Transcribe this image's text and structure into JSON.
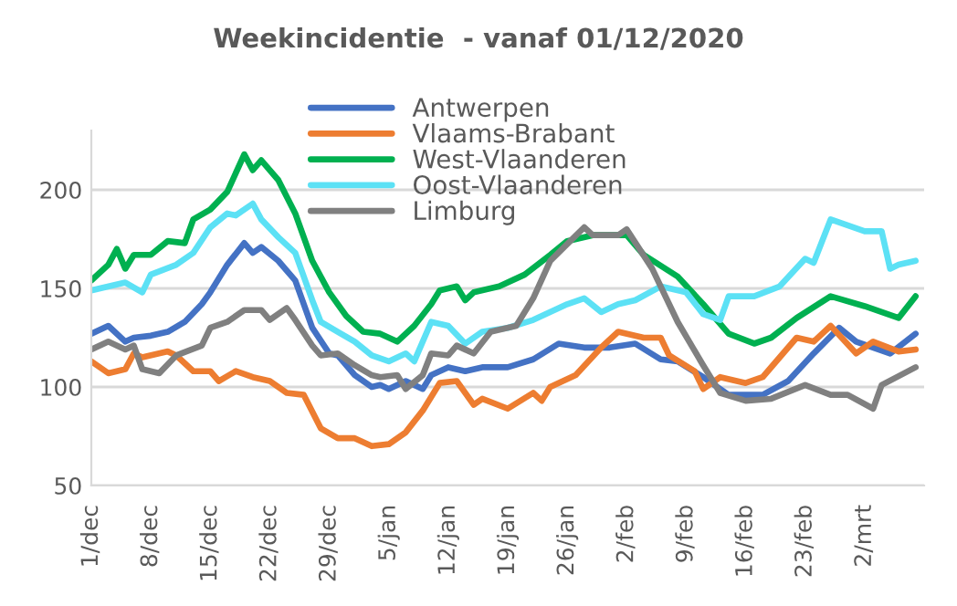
{
  "chart_data": {
    "type": "line",
    "title": "Weekincidentie  - vanaf 01/12/2020",
    "legend": "top",
    "grid": "y",
    "line_style": "solid",
    "marker": "none",
    "xlim": [
      "2020-12-01",
      "2021-03-09"
    ],
    "xticks": [
      {
        "value": "2020-12-01",
        "label": "1/dec"
      },
      {
        "value": "2020-12-08",
        "label": "8/dec"
      },
      {
        "value": "2020-12-15",
        "label": "15/dec"
      },
      {
        "value": "2020-12-22",
        "label": "22/dec"
      },
      {
        "value": "2020-12-29",
        "label": "29/dec"
      },
      {
        "value": "2021-01-05",
        "label": "5/jan"
      },
      {
        "value": "2021-01-12",
        "label": "12/jan"
      },
      {
        "value": "2021-01-19",
        "label": "19/jan"
      },
      {
        "value": "2021-01-26",
        "label": "26/jan"
      },
      {
        "value": "2021-02-02",
        "label": "2/feb"
      },
      {
        "value": "2021-02-09",
        "label": "9/feb"
      },
      {
        "value": "2021-02-16",
        "label": "16/feb"
      },
      {
        "value": "2021-02-23",
        "label": "23/feb"
      },
      {
        "value": "2021-03-02",
        "label": "2/mrt"
      }
    ],
    "ylim": [
      50,
      230
    ],
    "yticks": [
      50,
      100,
      150,
      200
    ],
    "series": [
      {
        "name": "Antwerpen",
        "color": "#4472c4",
        "x": [
          "2020-12-01",
          "2020-12-03",
          "2020-12-05",
          "2020-12-06",
          "2020-12-08",
          "2020-12-10",
          "2020-12-12",
          "2020-12-14",
          "2020-12-15",
          "2020-12-17",
          "2020-12-19",
          "2020-12-20",
          "2020-12-21",
          "2020-12-23",
          "2020-12-25",
          "2020-12-27",
          "2020-12-29",
          "2020-12-30",
          "2021-01-01",
          "2021-01-03",
          "2021-01-04",
          "2021-01-05",
          "2021-01-07",
          "2021-01-09",
          "2021-01-10",
          "2021-01-12",
          "2021-01-14",
          "2021-01-16",
          "2021-01-19",
          "2021-01-22",
          "2021-01-25",
          "2021-01-28",
          "2021-01-31",
          "2021-02-03",
          "2021-02-06",
          "2021-02-08",
          "2021-02-11",
          "2021-02-14",
          "2021-02-18",
          "2021-02-21",
          "2021-02-24",
          "2021-02-27",
          "2021-03-01",
          "2021-03-05",
          "2021-03-08"
        ],
        "values": [
          127,
          131,
          123,
          125,
          126,
          128,
          133,
          142,
          148,
          162,
          173,
          168,
          171,
          164,
          154,
          130,
          117,
          116,
          106,
          100,
          101,
          99,
          103,
          99,
          106,
          110,
          108,
          110,
          110,
          114,
          122,
          120,
          120,
          122,
          114,
          113,
          105,
          96,
          96,
          103,
          117,
          130,
          123,
          117,
          127
        ]
      },
      {
        "name": "Vlaams-Brabant",
        "color": "#ed7d31",
        "x": [
          "2020-12-01",
          "2020-12-03",
          "2020-12-05",
          "2020-12-06",
          "2020-12-07",
          "2020-12-10",
          "2020-12-11",
          "2020-12-13",
          "2020-12-15",
          "2020-12-16",
          "2020-12-18",
          "2020-12-20",
          "2020-12-22",
          "2020-12-24",
          "2020-12-26",
          "2020-12-28",
          "2020-12-30",
          "2021-01-01",
          "2021-01-03",
          "2021-01-05",
          "2021-01-07",
          "2021-01-09",
          "2021-01-11",
          "2021-01-13",
          "2021-01-15",
          "2021-01-16",
          "2021-01-19",
          "2021-01-22",
          "2021-01-23",
          "2021-01-24",
          "2021-01-27",
          "2021-01-30",
          "2021-02-01",
          "2021-02-04",
          "2021-02-06",
          "2021-02-07",
          "2021-02-10",
          "2021-02-11",
          "2021-02-13",
          "2021-02-16",
          "2021-02-18",
          "2021-02-21",
          "2021-02-22",
          "2021-02-24",
          "2021-02-26",
          "2021-03-01",
          "2021-03-03",
          "2021-03-06",
          "2021-03-08"
        ],
        "values": [
          113,
          107,
          109,
          117,
          115,
          118,
          116,
          108,
          108,
          103,
          108,
          105,
          103,
          97,
          96,
          79,
          74,
          74,
          70,
          71,
          77,
          88,
          102,
          103,
          91,
          94,
          89,
          97,
          93,
          100,
          106,
          120,
          128,
          125,
          125,
          116,
          108,
          99,
          105,
          102,
          105,
          120,
          125,
          123,
          131,
          117,
          123,
          118,
          119
        ]
      },
      {
        "name": "West-Vlaanderen",
        "color": "#00b050",
        "x": [
          "2020-12-01",
          "2020-12-03",
          "2020-12-04",
          "2020-12-05",
          "2020-12-06",
          "2020-12-08",
          "2020-12-10",
          "2020-12-12",
          "2020-12-13",
          "2020-12-15",
          "2020-12-17",
          "2020-12-19",
          "2020-12-20",
          "2020-12-21",
          "2020-12-23",
          "2020-12-25",
          "2020-12-27",
          "2020-12-29",
          "2020-12-31",
          "2021-01-02",
          "2021-01-04",
          "2021-01-06",
          "2021-01-08",
          "2021-01-10",
          "2021-01-11",
          "2021-01-13",
          "2021-01-14",
          "2021-01-15",
          "2021-01-18",
          "2021-01-21",
          "2021-01-24",
          "2021-01-26",
          "2021-01-29",
          "2021-02-02",
          "2021-02-04",
          "2021-02-08",
          "2021-02-11",
          "2021-02-14",
          "2021-02-17",
          "2021-02-19",
          "2021-02-22",
          "2021-02-26",
          "2021-03-02",
          "2021-03-06",
          "2021-03-08"
        ],
        "values": [
          154,
          162,
          170,
          160,
          167,
          167,
          174,
          173,
          185,
          190,
          199,
          218,
          210,
          215,
          205,
          188,
          164,
          148,
          136,
          128,
          127,
          123,
          131,
          142,
          149,
          151,
          144,
          148,
          151,
          157,
          167,
          174,
          177,
          177,
          167,
          156,
          142,
          127,
          122,
          125,
          135,
          146,
          141,
          135,
          146
        ]
      },
      {
        "name": "Oost-Vlaanderen",
        "color": "#5ce1f5",
        "x": [
          "2020-12-01",
          "2020-12-05",
          "2020-12-07",
          "2020-12-08",
          "2020-12-11",
          "2020-12-13",
          "2020-12-15",
          "2020-12-17",
          "2020-12-18",
          "2020-12-20",
          "2020-12-21",
          "2020-12-23",
          "2020-12-25",
          "2020-12-27",
          "2020-12-28",
          "2020-12-30",
          "2021-01-01",
          "2021-01-03",
          "2021-01-05",
          "2021-01-07",
          "2021-01-08",
          "2021-01-10",
          "2021-01-12",
          "2021-01-14",
          "2021-01-16",
          "2021-01-19",
          "2021-01-22",
          "2021-01-26",
          "2021-01-28",
          "2021-01-30",
          "2021-02-01",
          "2021-02-03",
          "2021-02-06",
          "2021-02-09",
          "2021-02-11",
          "2021-02-13",
          "2021-02-14",
          "2021-02-17",
          "2021-02-20",
          "2021-02-23",
          "2021-02-24",
          "2021-02-26",
          "2021-02-28",
          "2021-03-02",
          "2021-03-04",
          "2021-03-05",
          "2021-03-06",
          "2021-03-08"
        ],
        "values": [
          149,
          153,
          148,
          157,
          162,
          168,
          181,
          188,
          187,
          193,
          185,
          176,
          168,
          144,
          133,
          128,
          123,
          116,
          113,
          117,
          113,
          133,
          131,
          122,
          128,
          130,
          134,
          142,
          145,
          138,
          142,
          144,
          151,
          148,
          137,
          134,
          146,
          146,
          151,
          165,
          163,
          185,
          182,
          179,
          179,
          160,
          162,
          164
        ]
      },
      {
        "name": "Limburg",
        "color": "#808080",
        "x": [
          "2020-12-01",
          "2020-12-03",
          "2020-12-05",
          "2020-12-06",
          "2020-12-07",
          "2020-12-09",
          "2020-12-11",
          "2020-12-14",
          "2020-12-15",
          "2020-12-17",
          "2020-12-19",
          "2020-12-21",
          "2020-12-22",
          "2020-12-24",
          "2020-12-25",
          "2020-12-27",
          "2020-12-28",
          "2020-12-30",
          "2021-01-01",
          "2021-01-03",
          "2021-01-04",
          "2021-01-06",
          "2021-01-07",
          "2021-01-09",
          "2021-01-10",
          "2021-01-12",
          "2021-01-13",
          "2021-01-15",
          "2021-01-17",
          "2021-01-20",
          "2021-01-22",
          "2021-01-24",
          "2021-01-28",
          "2021-01-29",
          "2021-02-01",
          "2021-02-02",
          "2021-02-05",
          "2021-02-08",
          "2021-02-11",
          "2021-02-13",
          "2021-02-16",
          "2021-02-19",
          "2021-02-23",
          "2021-02-26",
          "2021-02-28",
          "2021-03-03",
          "2021-03-04",
          "2021-03-08"
        ],
        "values": [
          119,
          123,
          119,
          121,
          109,
          107,
          116,
          121,
          130,
          133,
          139,
          139,
          134,
          140,
          134,
          121,
          116,
          117,
          111,
          106,
          105,
          106,
          99,
          106,
          117,
          116,
          121,
          117,
          128,
          131,
          145,
          164,
          181,
          177,
          177,
          180,
          160,
          133,
          111,
          97,
          93,
          94,
          101,
          96,
          96,
          89,
          101,
          110
        ]
      }
    ]
  }
}
